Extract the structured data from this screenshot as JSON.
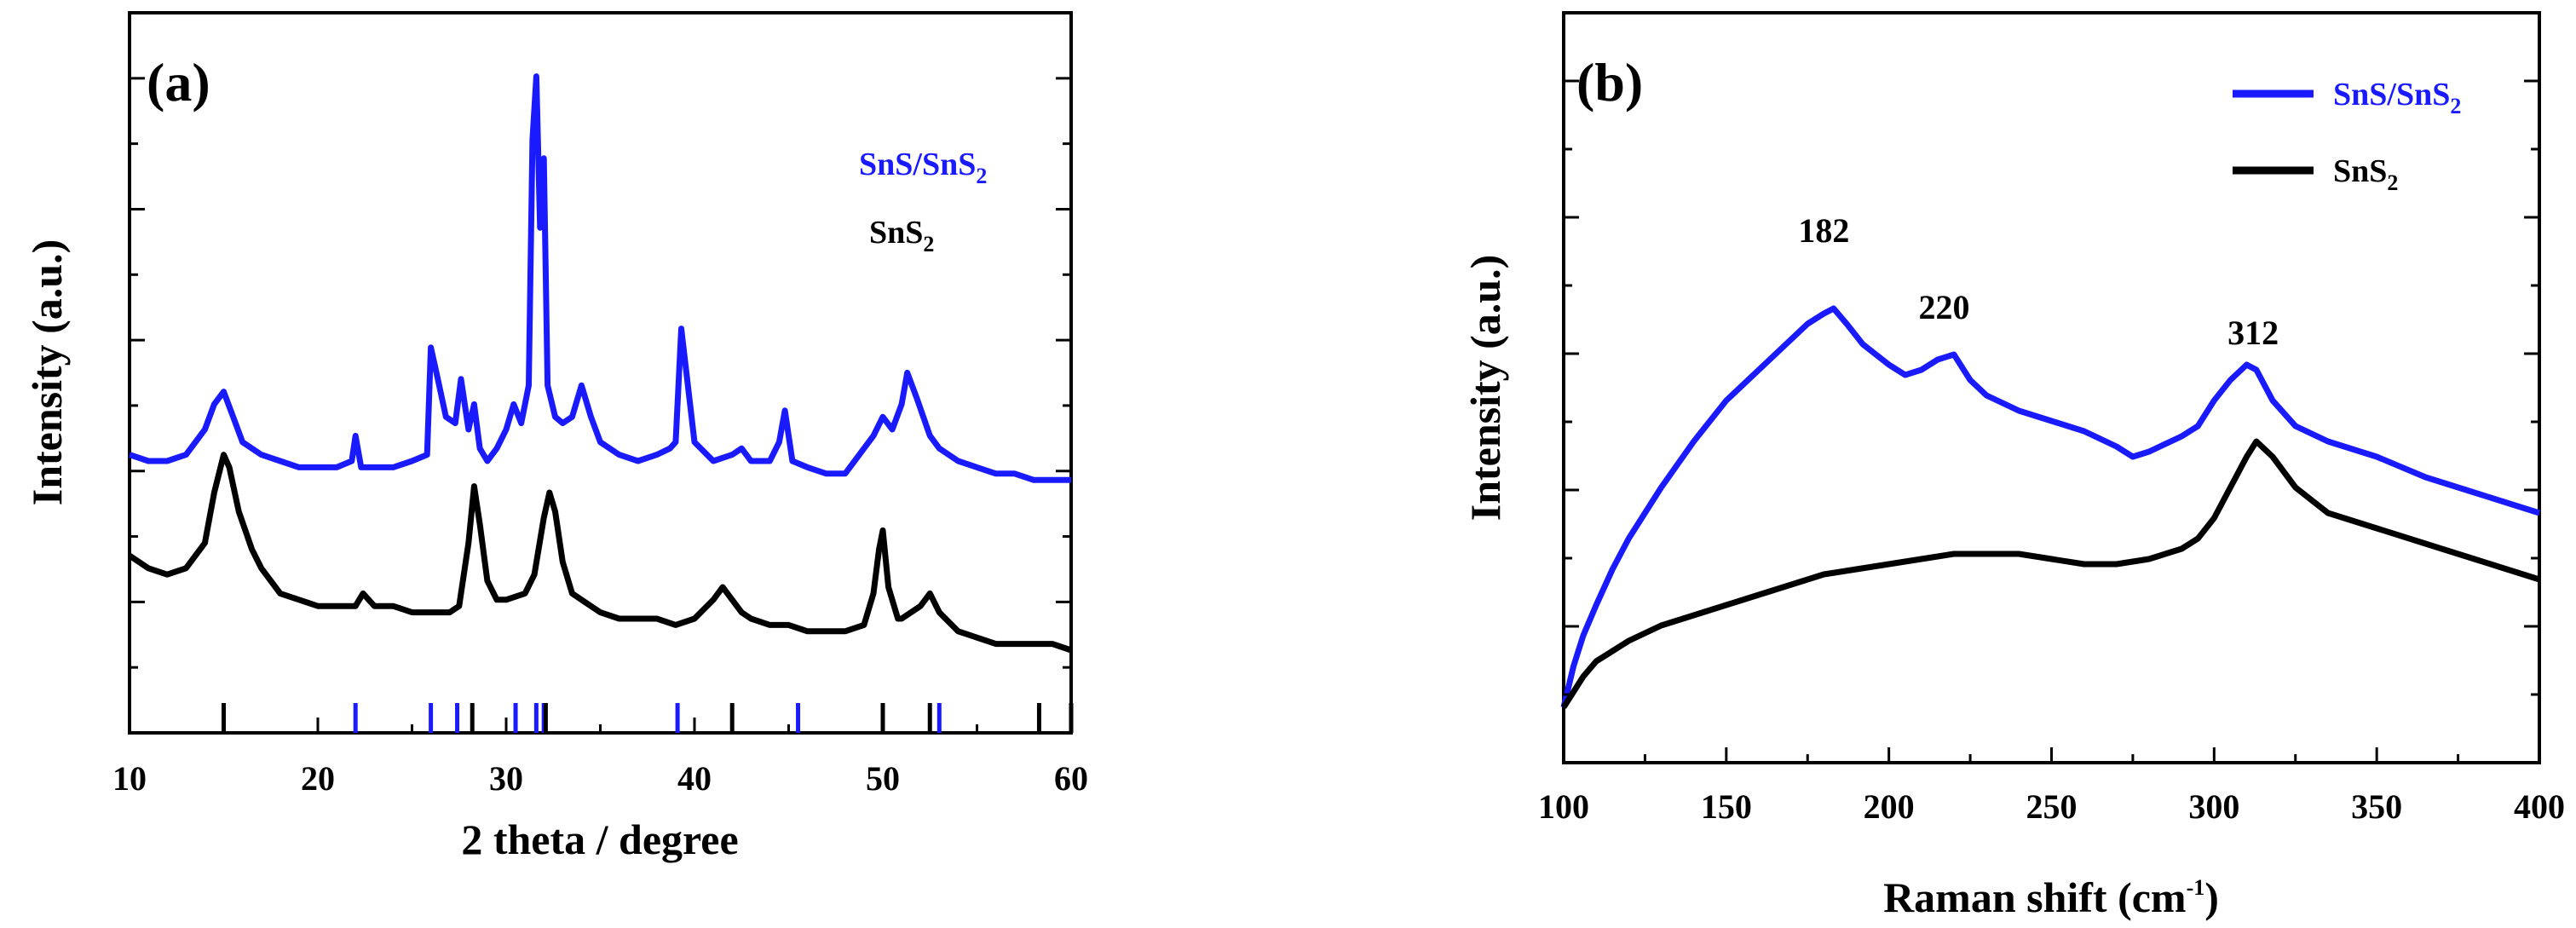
{
  "chart_data": [
    {
      "type": "line",
      "panel_label": "(a)",
      "title": "",
      "xlabel": "2 theta / degree",
      "ylabel": "Intensity (a.u.)",
      "xlim": [
        10,
        60
      ],
      "ylim": [
        0,
        100
      ],
      "x_ticks": [
        "10",
        "20",
        "30",
        "40",
        "50",
        "60"
      ],
      "y_ticks": [],
      "legend_position": "top-right",
      "series": [
        {
          "name": "SnS/SnS2",
          "legend_text": "SnS/SnS",
          "legend_sub": "2",
          "color": "#1a1aff",
          "x": [
            10,
            11,
            12,
            13,
            14,
            14.5,
            15,
            15.5,
            16,
            17,
            18,
            19,
            20,
            21,
            21.8,
            22,
            22.3,
            23,
            24,
            25,
            25.8,
            26,
            26.3,
            26.8,
            27.3,
            27.6,
            28,
            28.3,
            28.6,
            29,
            29.5,
            30,
            30.4,
            30.8,
            31.2,
            31.4,
            31.6,
            31.8,
            32,
            32.2,
            32.6,
            33,
            33.5,
            34,
            34.5,
            35,
            36,
            37,
            38,
            38.7,
            39,
            39.3,
            40,
            41,
            42,
            42.5,
            43,
            44,
            44.5,
            44.8,
            45.2,
            46,
            47,
            48,
            48.5,
            49,
            49.5,
            50,
            50.5,
            51,
            51.3,
            51.8,
            52.5,
            53,
            54,
            55,
            56,
            57,
            58,
            59,
            60
          ],
          "y": [
            36,
            35,
            35,
            36,
            40,
            44,
            46,
            42,
            38,
            36,
            35,
            34,
            34,
            34,
            35,
            39,
            34,
            34,
            34,
            35,
            36,
            53,
            49,
            42,
            41,
            48,
            40,
            44,
            37,
            35,
            37,
            40,
            44,
            41,
            47,
            86,
            96,
            72,
            83,
            47,
            42,
            41,
            42,
            47,
            42,
            38,
            36,
            35,
            36,
            37,
            38,
            56,
            38,
            35,
            36,
            37,
            35,
            35,
            38,
            43,
            35,
            34,
            33,
            33,
            35,
            37,
            39,
            42,
            40,
            44,
            49,
            45,
            39,
            37,
            35,
            34,
            33,
            33,
            32,
            32,
            32
          ]
        },
        {
          "name": "SnS2",
          "legend_text": "SnS",
          "legend_sub": "2",
          "color": "#000000",
          "x": [
            10,
            11,
            12,
            13,
            14,
            14.5,
            15,
            15.3,
            15.8,
            16.5,
            17,
            18,
            19,
            20,
            21,
            22,
            22.4,
            23,
            24,
            25,
            26,
            27,
            27.5,
            28,
            28.3,
            28.6,
            29,
            29.5,
            30,
            31,
            31.5,
            32,
            32.3,
            32.6,
            33,
            33.5,
            34,
            35,
            36,
            37,
            38,
            39,
            40,
            41,
            41.5,
            42,
            42.5,
            43,
            44,
            45,
            46,
            47,
            48,
            49,
            49.5,
            49.8,
            50,
            50.3,
            50.8,
            51,
            52,
            52.5,
            53,
            54,
            55,
            56,
            57,
            58,
            59,
            60
          ],
          "y": [
            20,
            18,
            17,
            18,
            22,
            30,
            36,
            34,
            27,
            21,
            18,
            14,
            13,
            12,
            12,
            12,
            14,
            12,
            12,
            11,
            11,
            11,
            12,
            22,
            31,
            25,
            16,
            13,
            13,
            14,
            17,
            26,
            30,
            27,
            19,
            14,
            13,
            11,
            10,
            10,
            10,
            9,
            10,
            13,
            15,
            13,
            11,
            10,
            9,
            9,
            8,
            8,
            8,
            9,
            14,
            21,
            24,
            15,
            10,
            10,
            12,
            14,
            11,
            8,
            7,
            6,
            6,
            6,
            6,
            5
          ]
        }
      ],
      "reference_ticks": [
        {
          "name": "SnS",
          "color": "#1a1aff",
          "x": [
            22.0,
            26.0,
            27.4,
            30.5,
            31.6,
            32.0,
            39.1,
            45.5,
            53.0
          ]
        },
        {
          "name": "SnS2",
          "color": "#000000",
          "x": [
            15.0,
            28.2,
            32.1,
            42.0,
            50.0,
            52.5,
            58.3,
            60.0
          ]
        }
      ]
    },
    {
      "type": "line",
      "panel_label": "(b)",
      "title": "",
      "xlabel": "Raman shift (cm",
      "xlabel_sup": "-1",
      "xlabel_end": ")",
      "ylabel": "Intensity (a.u.)",
      "xlim": [
        100,
        400
      ],
      "ylim": [
        0,
        100
      ],
      "x_ticks": [
        "100",
        "150",
        "200",
        "250",
        "300",
        "350",
        "400"
      ],
      "y_ticks": [],
      "legend_position": "top-right",
      "annotations": [
        {
          "text": "182",
          "x": 180,
          "y": 91
        },
        {
          "text": "220",
          "x": 217,
          "y": 76
        },
        {
          "text": "312",
          "x": 312,
          "y": 71
        }
      ],
      "series": [
        {
          "name": "SnS/SnS2",
          "legend_text": "SnS/SnS",
          "legend_sub": "2",
          "color": "#1a1aff",
          "x": [
            100,
            103,
            106,
            110,
            115,
            120,
            125,
            130,
            140,
            150,
            160,
            170,
            175,
            180,
            183,
            187,
            192,
            200,
            205,
            210,
            215,
            220,
            225,
            230,
            240,
            250,
            260,
            270,
            275,
            280,
            290,
            295,
            300,
            305,
            310,
            313,
            318,
            325,
            335,
            350,
            365,
            380,
            390,
            400
          ],
          "y": [
            0,
            8,
            14,
            20,
            27,
            33,
            38,
            43,
            52,
            60,
            66,
            72,
            75,
            77,
            78,
            75,
            71,
            67,
            65,
            66,
            68,
            69,
            64,
            61,
            58,
            56,
            54,
            51,
            49,
            50,
            53,
            55,
            60,
            64,
            67,
            66,
            60,
            55,
            52,
            49,
            45,
            42,
            40,
            38
          ]
        },
        {
          "name": "SnS2",
          "legend_text": "SnS",
          "legend_sub": "2",
          "color": "#000000",
          "x": [
            100,
            103,
            106,
            110,
            115,
            120,
            130,
            140,
            150,
            160,
            170,
            180,
            190,
            200,
            210,
            220,
            230,
            240,
            250,
            260,
            270,
            280,
            290,
            295,
            300,
            305,
            310,
            313,
            318,
            325,
            335,
            350,
            365,
            380,
            390,
            400
          ],
          "y": [
            0,
            3,
            6,
            9,
            11,
            13,
            16,
            18,
            20,
            22,
            24,
            26,
            27,
            28,
            29,
            30,
            30,
            30,
            29,
            28,
            28,
            29,
            31,
            33,
            37,
            43,
            49,
            52,
            49,
            43,
            38,
            35,
            32,
            29,
            27,
            25
          ]
        }
      ]
    }
  ]
}
